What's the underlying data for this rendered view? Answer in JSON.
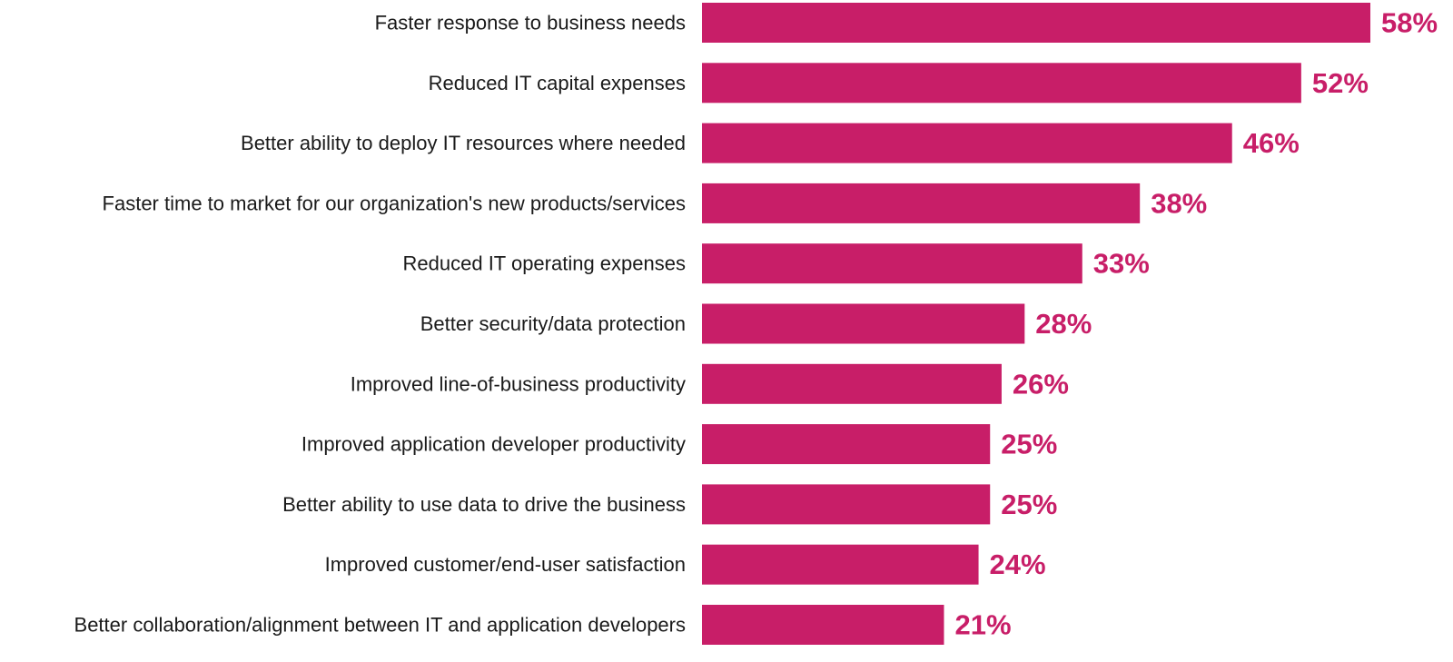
{
  "colors": {
    "bar": "#c81e68",
    "value_label": "#c81e68",
    "category_label": "#1a1a1a"
  },
  "chart_data": {
    "type": "bar",
    "orientation": "horizontal",
    "title": "",
    "xlabel": "",
    "ylabel": "",
    "grid": false,
    "legend": "none",
    "xlim": [
      0,
      58
    ],
    "categories": [
      "Faster response to business needs",
      "Reduced IT capital expenses",
      "Better ability to deploy IT resources where needed",
      "Faster time to market for our organization's new products/services",
      "Reduced IT operating expenses",
      "Better security/data protection",
      "Improved line-of-business productivity",
      "Improved application developer productivity",
      "Better ability to use data to drive the business",
      "Improved customer/end-user satisfaction",
      "Better collaboration/alignment between IT and application developers"
    ],
    "values": [
      58,
      52,
      46,
      38,
      33,
      28,
      26,
      25,
      25,
      24,
      21
    ],
    "value_labels": [
      "58%",
      "52%",
      "46%",
      "38%",
      "33%",
      "28%",
      "26%",
      "25%",
      "25%",
      "24%",
      "21%"
    ]
  }
}
